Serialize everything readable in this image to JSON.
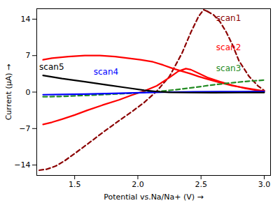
{
  "chart_data": {
    "type": "line",
    "xlabel": "Potential vs.Na/Na+ (V)",
    "ylabel": "Current (μA)",
    "xlim": [
      1.2,
      3.05
    ],
    "ylim": [
      -16,
      16
    ],
    "xticks": [
      1.5,
      {
        "value": 2.0,
        "label": "2.0"
      },
      2.5,
      {
        "value": 3.0,
        "label": "3.0"
      }
    ],
    "yticks": [
      -14,
      -7,
      0,
      7,
      14
    ],
    "series": [
      {
        "color": "#8B0000",
        "line_style": "dashed",
        "x": [
          1.22,
          1.28,
          1.35,
          1.42,
          1.5,
          1.6,
          1.72,
          1.85,
          1.95,
          2.05,
          2.15,
          2.25,
          2.35,
          2.42,
          2.48,
          2.52,
          2.55
        ],
        "values": [
          -15.0,
          -14.8,
          -14.2,
          -13.2,
          -11.8,
          -10.0,
          -7.8,
          -5.5,
          -3.8,
          -2.0,
          0.2,
          3.0,
          7.5,
          11.5,
          14.5,
          15.8,
          15.5
        ]
      },
      {
        "color": "#8B0000",
        "line_style": "dashed",
        "x": [
          2.55,
          2.6,
          2.65,
          2.7,
          2.75,
          2.8,
          2.88,
          2.95,
          3.0
        ],
        "values": [
          15.5,
          14.8,
          13.5,
          11.5,
          9.0,
          6.0,
          3.0,
          1.2,
          0.3
        ]
      },
      {
        "color": "#FF0000",
        "line_style": "solid",
        "x": [
          1.25,
          1.32,
          1.4,
          1.5,
          1.6,
          1.72,
          1.85,
          1.95,
          2.05,
          2.15,
          2.25,
          2.32,
          2.38,
          2.42,
          2.48,
          2.55,
          2.65,
          2.75,
          2.85,
          2.95,
          3.0
        ],
        "values": [
          -6.2,
          -5.8,
          -5.2,
          -4.4,
          -3.5,
          -2.5,
          -1.5,
          -0.6,
          0.2,
          1.2,
          2.8,
          4.0,
          4.5,
          4.3,
          3.6,
          2.8,
          2.0,
          1.3,
          0.7,
          0.3,
          0.2
        ]
      },
      {
        "color": "#FF0000",
        "line_style": "solid",
        "x": [
          3.0,
          2.95,
          2.85,
          2.75,
          2.65,
          2.55,
          2.48,
          2.42,
          2.35,
          2.28,
          2.2,
          2.12,
          2.02,
          1.92,
          1.82,
          1.7,
          1.58,
          1.45,
          1.32,
          1.25
        ],
        "values": [
          0.2,
          0.4,
          0.8,
          1.2,
          1.8,
          2.5,
          3.0,
          3.5,
          4.0,
          4.5,
          5.2,
          5.8,
          6.2,
          6.5,
          6.8,
          7.0,
          7.0,
          6.8,
          6.5,
          6.2
        ]
      },
      {
        "color": "#228B22",
        "line_style": "dashed",
        "x": [
          1.25,
          1.38,
          1.52,
          1.68,
          1.85,
          2.0,
          2.15,
          2.3,
          2.45,
          2.6,
          2.75,
          2.88,
          3.0
        ],
        "values": [
          -0.9,
          -0.85,
          -0.7,
          -0.55,
          -0.35,
          -0.15,
          0.1,
          0.45,
          0.9,
          1.4,
          1.8,
          2.1,
          2.3
        ]
      },
      {
        "color": "#0000FF",
        "line_style": "solid",
        "x": [
          1.25,
          1.4,
          1.58,
          1.75,
          1.92,
          2.08,
          2.25,
          2.45,
          2.65,
          2.82,
          3.0
        ],
        "values": [
          -0.5,
          -0.45,
          -0.38,
          -0.28,
          -0.18,
          -0.08,
          0.0,
          0.05,
          0.08,
          0.1,
          0.12
        ]
      },
      {
        "color": "#000000",
        "line_style": "solid",
        "x": [
          1.25,
          1.4,
          1.58,
          1.75,
          1.92,
          2.05,
          2.15,
          2.25,
          2.4,
          2.6,
          2.8,
          3.0
        ],
        "values": [
          3.2,
          2.6,
          2.0,
          1.4,
          0.8,
          0.35,
          0.1,
          -0.05,
          -0.1,
          -0.12,
          -0.1,
          -0.08
        ]
      }
    ],
    "annotations": [
      {
        "text": "scan1",
        "x": 2.62,
        "y": 14.2,
        "color": "#8B0000"
      },
      {
        "text": "scan2",
        "x": 2.62,
        "y": 8.5,
        "color": "#FF0000"
      },
      {
        "text": "scan3",
        "x": 2.62,
        "y": 4.5,
        "color": "#228B22"
      },
      {
        "text": "scan4",
        "x": 1.65,
        "y": 3.8,
        "color": "#0000FF"
      },
      {
        "text": "scan5",
        "x": 1.22,
        "y": 4.8,
        "color": "#000000"
      }
    ]
  }
}
